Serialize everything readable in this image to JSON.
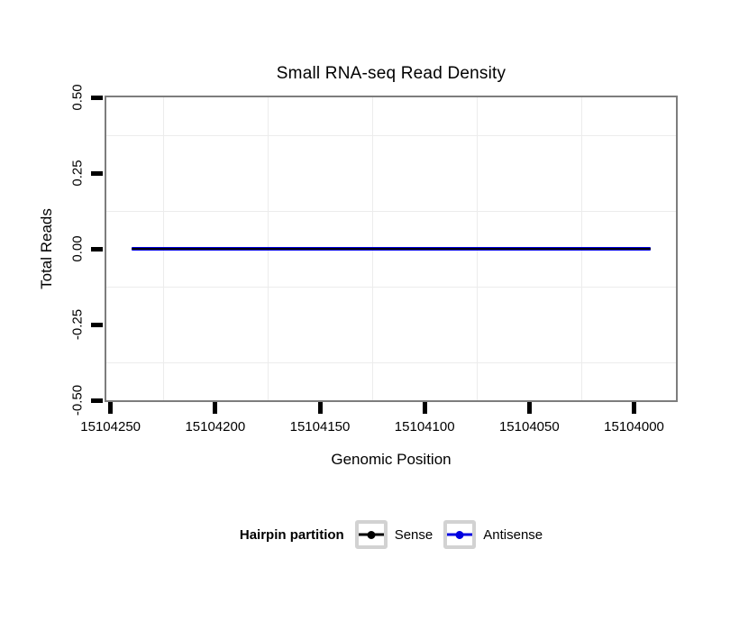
{
  "chart_data": {
    "type": "line",
    "title": "Small RNA-seq Read Density",
    "xlabel": "Genomic Position",
    "ylabel": "Total Reads",
    "grid": "minor-only",
    "background": "#ffffff",
    "panel_border_color": "#7d7d7d",
    "gridline_color": "#ececec",
    "x_axis": {
      "reversed": true,
      "domain": [
        15104252,
        15103980
      ],
      "ticks": [
        15104250,
        15104200,
        15104150,
        15104100,
        15104050,
        15104000
      ],
      "tick_labels": [
        "15104250",
        "15104200",
        "15104150",
        "15104100",
        "15104050",
        "15104000"
      ]
    },
    "y_axis": {
      "domain": [
        0.5,
        -0.5
      ],
      "ticks": [
        0.5,
        0.25,
        0,
        -0.25,
        -0.5
      ],
      "tick_labels": [
        "0.50",
        "0.25",
        "0.00",
        "-0.25",
        "-0.50"
      ]
    },
    "series": [
      {
        "name": "Antisense",
        "color": "#0000e0",
        "line_width": 4,
        "x": [
          15104240,
          15103992
        ],
        "y": [
          0,
          0
        ]
      },
      {
        "name": "Sense",
        "color": "#000000",
        "line_width": 2,
        "x": [
          15104240,
          15103992
        ],
        "y": [
          0,
          0
        ]
      }
    ],
    "legend": {
      "position": "bottom",
      "title": "Hairpin partition",
      "entries": [
        {
          "label": "Sense",
          "color": "#000000"
        },
        {
          "label": "Antisense",
          "color": "#0000e0"
        }
      ]
    }
  }
}
